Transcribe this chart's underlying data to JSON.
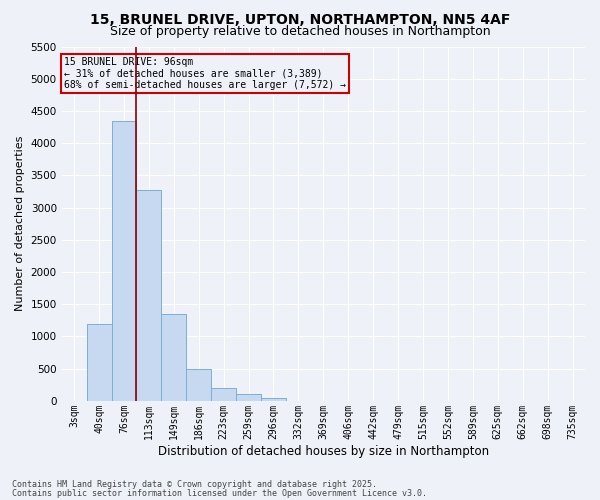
{
  "title1": "15, BRUNEL DRIVE, UPTON, NORTHAMPTON, NN5 4AF",
  "title2": "Size of property relative to detached houses in Northampton",
  "xlabel": "Distribution of detached houses by size in Northampton",
  "ylabel": "Number of detached properties",
  "categories": [
    "3sqm",
    "40sqm",
    "76sqm",
    "113sqm",
    "149sqm",
    "186sqm",
    "223sqm",
    "259sqm",
    "296sqm",
    "332sqm",
    "369sqm",
    "406sqm",
    "442sqm",
    "479sqm",
    "515sqm",
    "552sqm",
    "589sqm",
    "625sqm",
    "662sqm",
    "698sqm",
    "735sqm"
  ],
  "values": [
    0,
    1200,
    4350,
    3280,
    1350,
    500,
    200,
    100,
    50,
    0,
    0,
    0,
    0,
    0,
    0,
    0,
    0,
    0,
    0,
    0,
    0
  ],
  "bar_color": "#c6d9f1",
  "bar_edge_color": "#7bafd4",
  "red_line_index": 2.5,
  "annotation_title": "15 BRUNEL DRIVE: 96sqm",
  "annotation_line1": "← 31% of detached houses are smaller (3,389)",
  "annotation_line2": "68% of semi-detached houses are larger (7,572) →",
  "ylim": [
    0,
    5500
  ],
  "yticks": [
    0,
    500,
    1000,
    1500,
    2000,
    2500,
    3000,
    3500,
    4000,
    4500,
    5000,
    5500
  ],
  "footer1": "Contains HM Land Registry data © Crown copyright and database right 2025.",
  "footer2": "Contains public sector information licensed under the Open Government Licence v3.0.",
  "background_color": "#eef2f8",
  "grid_color": "#ffffff",
  "title_fontsize": 10,
  "subtitle_fontsize": 9
}
